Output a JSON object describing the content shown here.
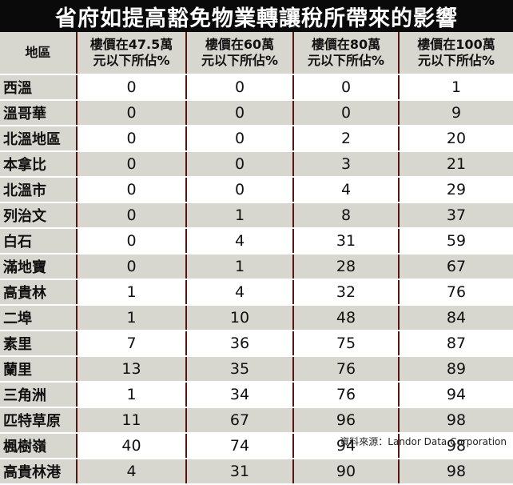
{
  "chart_data": {
    "type": "table",
    "title": "省府如提高豁免物業轉讓稅所帶來的影響",
    "columns": [
      "地區",
      "樓價在47.5萬元以下所佔%",
      "樓價在60萬元以下所佔%",
      "樓價在80萬元以下所佔%",
      "樓價在100萬元以下所佔%"
    ],
    "header_lines": [
      [
        "地區"
      ],
      [
        "樓價在47.5萬",
        "元以下所佔%"
      ],
      [
        "樓價在60萬",
        "元以下所佔%"
      ],
      [
        "樓價在80萬",
        "元以下所佔%"
      ],
      [
        "樓價在100萬",
        "元以下所佔%"
      ]
    ],
    "rows": [
      {
        "region": "西溫",
        "values": [
          0,
          0,
          0,
          1
        ]
      },
      {
        "region": "溫哥華",
        "values": [
          0,
          0,
          0,
          9
        ]
      },
      {
        "region": "北溫地區",
        "values": [
          0,
          0,
          2,
          20
        ]
      },
      {
        "region": "本拿比",
        "values": [
          0,
          0,
          3,
          21
        ]
      },
      {
        "region": "北溫市",
        "values": [
          0,
          0,
          4,
          29
        ]
      },
      {
        "region": "列治文",
        "values": [
          0,
          1,
          8,
          37
        ]
      },
      {
        "region": "白石",
        "values": [
          0,
          4,
          31,
          59
        ]
      },
      {
        "region": "滿地寶",
        "values": [
          0,
          1,
          28,
          67
        ]
      },
      {
        "region": "高貴林",
        "values": [
          1,
          4,
          32,
          76
        ]
      },
      {
        "region": "二埠",
        "values": [
          1,
          10,
          48,
          84
        ]
      },
      {
        "region": "素里",
        "values": [
          7,
          36,
          75,
          87
        ]
      },
      {
        "region": "蘭里",
        "values": [
          13,
          35,
          76,
          89
        ]
      },
      {
        "region": "三角洲",
        "values": [
          1,
          34,
          76,
          94
        ]
      },
      {
        "region": "匹特草原",
        "values": [
          11,
          67,
          96,
          98
        ]
      },
      {
        "region": "楓樹嶺",
        "values": [
          40,
          74,
          94,
          98
        ]
      },
      {
        "region": "高貴林港",
        "values": [
          4,
          31,
          90,
          98
        ]
      }
    ],
    "source": "資料來源：Landor Data Corporation"
  },
  "colors": {
    "title_bg": "#0a0a0a",
    "title_text": "#ffffff",
    "band": "#d7d6cf",
    "divider": "#5a1410"
  }
}
